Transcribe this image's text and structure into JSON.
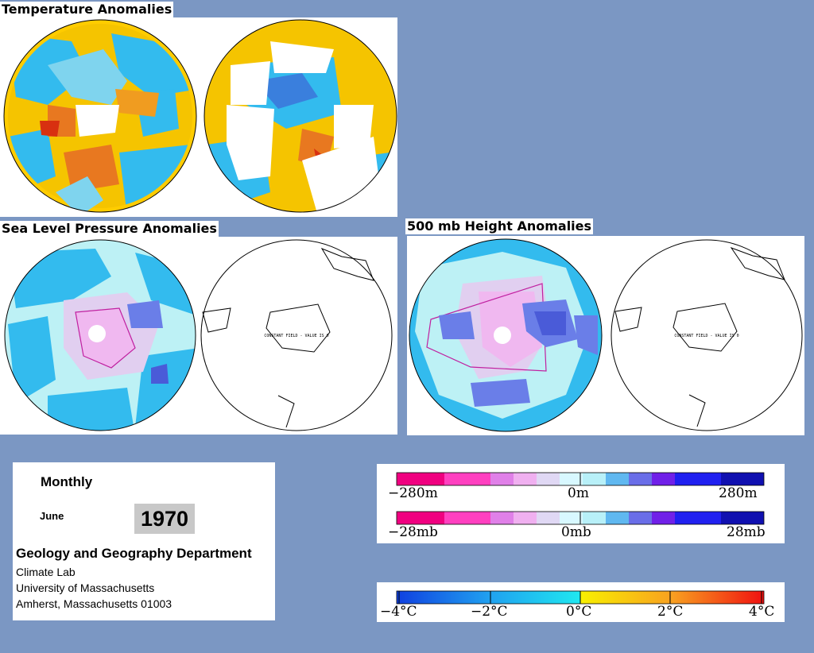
{
  "panels": {
    "temperature_title": "Temperature Anomalies",
    "slp_title": "Sea Level Pressure Anomalies",
    "height_title": "500 mb Height Anomalies",
    "constant_field_note": "CONSTANT FIELD - VALUE IS 0"
  },
  "info": {
    "period": "Monthly",
    "month": "June",
    "year": "1970",
    "department": "Geology and Geography Department",
    "lab": "Climate Lab",
    "university": "University of Massachusetts",
    "address": "Amherst, Massachusetts 01003"
  },
  "legends": {
    "height": {
      "min": "−280m",
      "mid": "0m",
      "max": "280m"
    },
    "pressure": {
      "min": "−28mb",
      "mid": "0mb",
      "max": "28mb"
    },
    "temperature": {
      "t1": "−4°C",
      "t2": "−2°C",
      "t3": "0°C",
      "t4": "2°C",
      "t5": "4°C"
    }
  },
  "colors": {
    "background": "#7b97c3",
    "ocean_cold": "#33bbee",
    "warm": "#f5c400",
    "hot": "#e87820",
    "light_cyan": "#bdf1f5",
    "pink": "#f0b8f0",
    "deep_blue": "#4a5bd8"
  }
}
